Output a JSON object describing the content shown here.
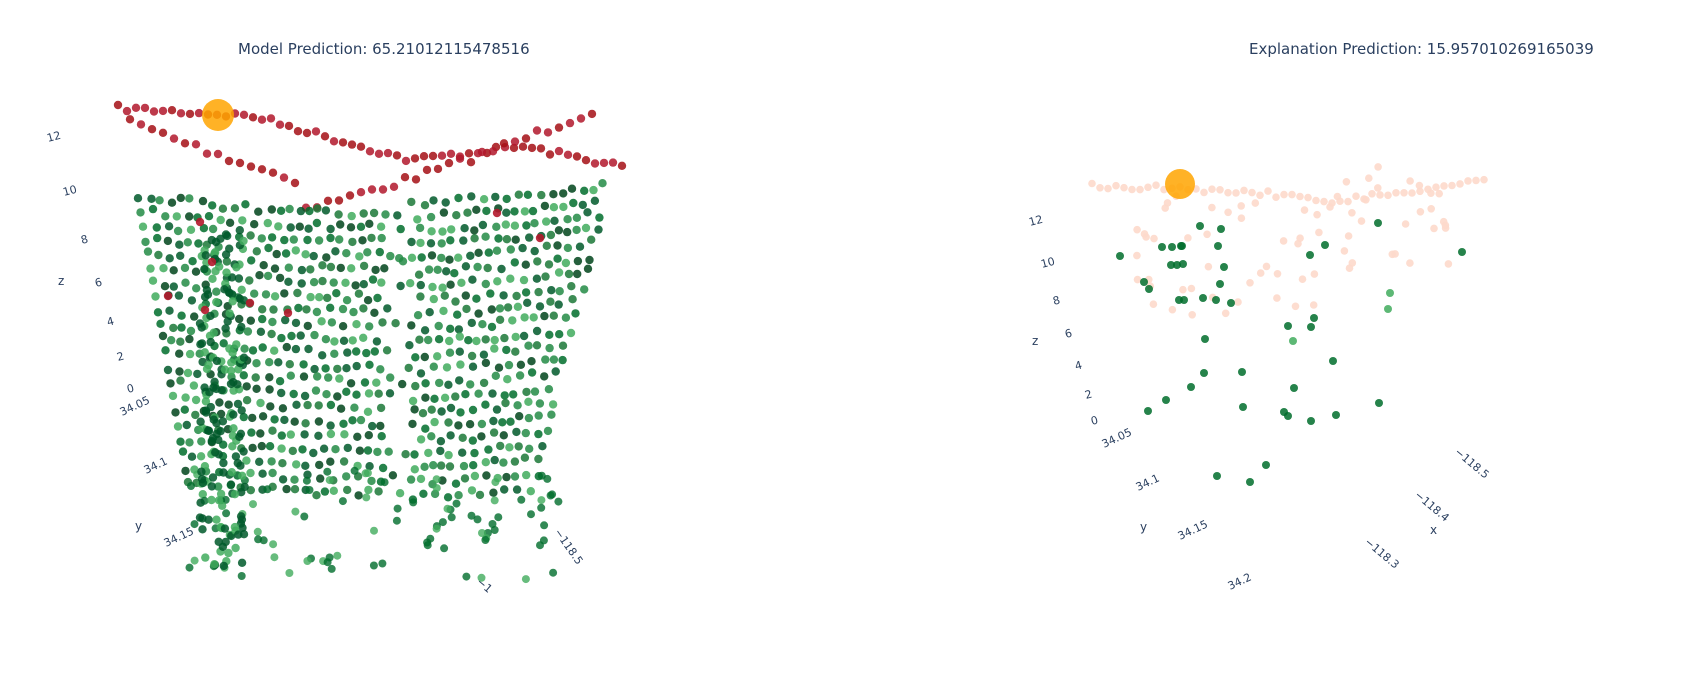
{
  "chart_data": [
    {
      "type": "scatter",
      "title": "Model Prediction: 65.21012115478516",
      "axes": {
        "x": {
          "label": "",
          "ticks": [
            "−118.5",
            "−1"
          ]
        },
        "y": {
          "label": "y",
          "ticks": [
            "34.05",
            "34.1",
            "34.15"
          ]
        },
        "z": {
          "label": "z",
          "ticks": [
            "0",
            "2",
            "4",
            "6",
            "8",
            "10",
            "12"
          ],
          "range": [
            0,
            13
          ]
        }
      },
      "colors": {
        "positive": "#006d2c",
        "positive_light": "#41ab5d",
        "negative": "#b2182b",
        "highlight": "#ffa500"
      },
      "highlight_point": {
        "z": 13.2
      }
    },
    {
      "type": "scatter",
      "title": "Explanation Prediction: 15.957010269165039",
      "axes": {
        "x": {
          "label": "x",
          "ticks": [
            "−118.5",
            "−118.4",
            "−118.3"
          ]
        },
        "y": {
          "label": "y",
          "ticks": [
            "34.05",
            "34.1",
            "34.15",
            "34.2"
          ]
        },
        "z": {
          "label": "z",
          "ticks": [
            "0",
            "2",
            "4",
            "6",
            "8",
            "10",
            "12"
          ],
          "range": [
            0,
            13
          ]
        }
      },
      "colors": {
        "positive": "#006d2c",
        "positive_light": "#41ab5d",
        "faint": "#fdd9cb",
        "highlight": "#ffa500"
      },
      "highlight_point": {
        "z": 13.2
      }
    }
  ]
}
